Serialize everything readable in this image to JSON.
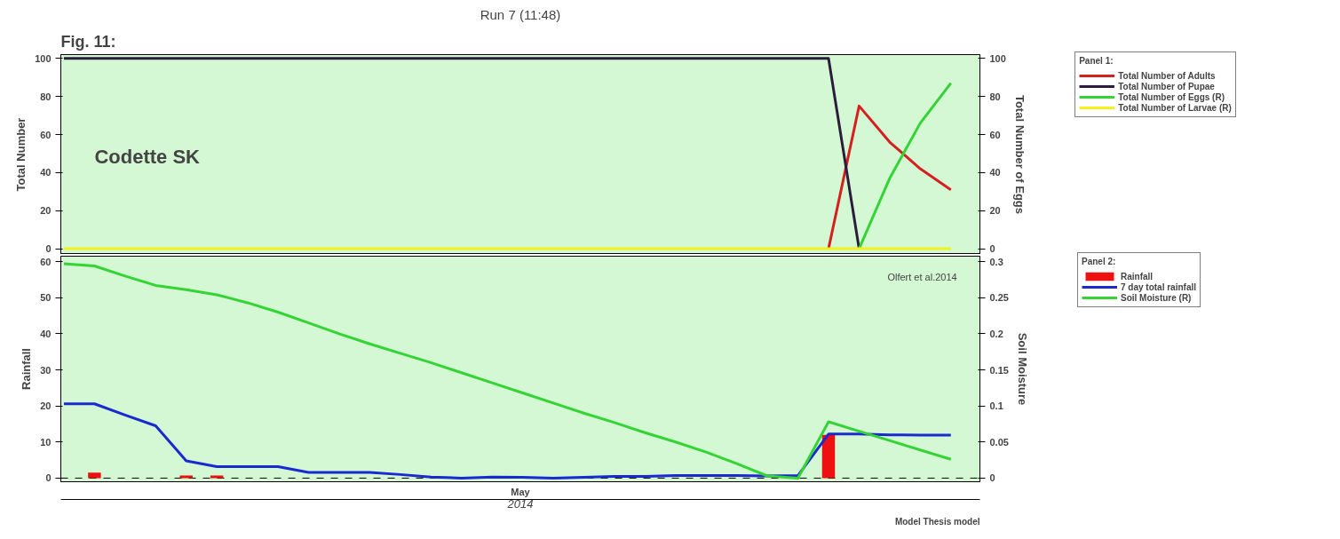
{
  "chart_data": [
    {
      "type": "line",
      "title": "Run 7 (11:48)",
      "ylabel": "Total Number",
      "y2label": "Total Number of Eggs",
      "legend_title": "Panel 1:",
      "annotations": [
        "Fig. 11:",
        "Codette SK"
      ],
      "categories": [
        null,
        null,
        null,
        null,
        null,
        null,
        null,
        null,
        null,
        null,
        null,
        null,
        null,
        null,
        null,
        null,
        null,
        null,
        null,
        null,
        null,
        null,
        null,
        null,
        null,
        null,
        null,
        null,
        null,
        null
      ],
      "ylim": [
        -3,
        102
      ],
      "yticks": [
        0,
        20,
        40,
        60,
        80,
        100
      ],
      "y2lim": [
        -3,
        102
      ],
      "y2ticks": [
        0,
        20,
        40,
        60,
        80,
        100
      ],
      "tick_labels": "y",
      "legend": "right",
      "grid": false,
      "series": [
        {
          "name": "Total Number of Adults",
          "color": "#d42020",
          "values": [
            null,
            null,
            null,
            null,
            null,
            null,
            null,
            null,
            null,
            null,
            null,
            null,
            null,
            null,
            null,
            null,
            null,
            null,
            null,
            null,
            null,
            null,
            null,
            null,
            null,
            0,
            75,
            56,
            42,
            31
          ]
        },
        {
          "name": "Total Number of Pupae",
          "color": "#2b1d3c",
          "values": [
            100,
            100,
            100,
            100,
            100,
            100,
            100,
            100,
            100,
            100,
            100,
            100,
            100,
            100,
            100,
            100,
            100,
            100,
            100,
            100,
            100,
            100,
            100,
            100,
            100,
            100,
            0,
            null,
            null,
            null
          ]
        },
        {
          "name": "Total Number of Eggs (R)",
          "color": "#33d433",
          "axis": "y2",
          "values": [
            null,
            null,
            null,
            null,
            null,
            null,
            null,
            null,
            null,
            null,
            null,
            null,
            null,
            null,
            null,
            null,
            null,
            null,
            null,
            null,
            null,
            null,
            null,
            null,
            null,
            null,
            0,
            37,
            66,
            87
          ]
        },
        {
          "name": "Total Number of Larvae (R)",
          "color": "#f2f21a",
          "axis": "y2",
          "values": [
            0,
            0,
            0,
            0,
            0,
            0,
            0,
            0,
            0,
            0,
            0,
            0,
            0,
            0,
            0,
            0,
            0,
            0,
            0,
            0,
            0,
            0,
            0,
            0,
            0,
            0,
            0,
            0,
            0,
            0
          ]
        }
      ]
    },
    {
      "type": "line",
      "xlabel": "May",
      "ylabel": "Rainfall",
      "y2label": "Soil Moisture",
      "legend_title": "Panel 2:",
      "annotations": [
        "Olfert et al.2014",
        "2014",
        "Model Thesis model"
      ],
      "categories": [
        null,
        null,
        null,
        null,
        null,
        null,
        null,
        null,
        null,
        null,
        null,
        null,
        null,
        null,
        null,
        null,
        null,
        null,
        null,
        null,
        null,
        null,
        null,
        null,
        null,
        null,
        null,
        null,
        null,
        null
      ],
      "ylim": [
        -1,
        61.5
      ],
      "yticks": [
        0,
        10,
        20,
        30,
        40,
        50,
        60
      ],
      "y2lim": [
        -0.005,
        0.3075
      ],
      "y2ticks": [
        0,
        0.05,
        0.1,
        0.15,
        0.2,
        0.25,
        0.3
      ],
      "tick_labels": "y",
      "legend": "right",
      "grid": false,
      "ref_lines": [
        {
          "axis": "y",
          "value": 0,
          "color": "#000000",
          "line_style": "dashed"
        }
      ],
      "series": [
        {
          "name": "Rainfall",
          "type": "bar",
          "color": "#ee1111",
          "values": [
            0,
            1.5,
            0,
            0,
            0.7,
            0.7,
            0,
            0,
            0,
            0,
            0,
            0,
            0,
            0,
            0,
            0,
            0,
            0,
            0,
            0,
            0,
            0,
            0,
            0,
            0,
            12,
            0,
            0,
            0,
            0
          ]
        },
        {
          "name": "7 day total rainfall",
          "color": "#1a2ad0",
          "values": [
            20.6,
            20.6,
            17.5,
            14.5,
            4.8,
            3.2,
            3.2,
            3.2,
            1.6,
            1.6,
            1.6,
            1.0,
            0.3,
            0,
            0.3,
            0.2,
            0,
            0.2,
            0.5,
            0.5,
            0.7,
            0.7,
            0.7,
            0.6,
            0.7,
            12.2,
            12.2,
            12,
            11.9,
            11.9
          ]
        },
        {
          "name": "Soil Moisture (R)",
          "color": "#33d433",
          "axis": "y2",
          "values": [
            0.297,
            0.294,
            0.28,
            0.267,
            0.261,
            0.254,
            0.243,
            0.23,
            0.215,
            0.2,
            0.186,
            0.173,
            0.16,
            0.146,
            0.132,
            0.118,
            0.104,
            0.09,
            0.077,
            0.063,
            0.05,
            0.036,
            0.02,
            0.003,
            0,
            0.078,
            0.065,
            0.052,
            0.039,
            0.026
          ]
        }
      ]
    }
  ]
}
